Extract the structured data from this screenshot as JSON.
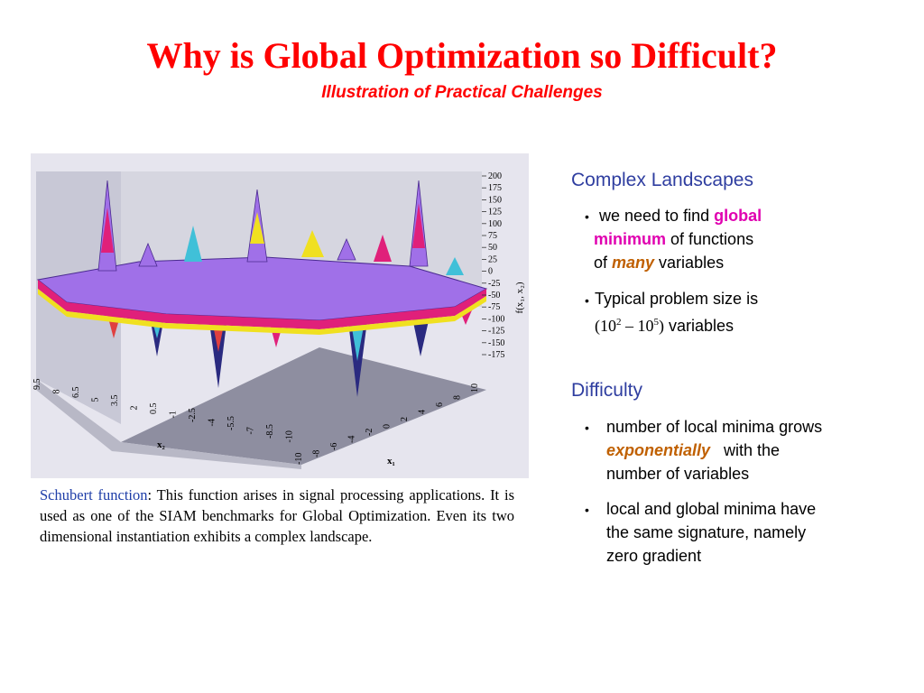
{
  "slide": {
    "title": "Why is Global Optimization so Difficult?",
    "subtitle": "Illustration of Practical Challenges"
  },
  "figure": {
    "z_axis_label": "f(x₁, x₂)",
    "z_ticks": [
      "200",
      "175",
      "150",
      "125",
      "100",
      "75",
      "50",
      "25",
      "0",
      "-25",
      "-50",
      "-75",
      "-100",
      "-125",
      "-150",
      "-175"
    ],
    "x2_label": "x₂",
    "x2_ticks": [
      "9.5",
      "8",
      "6.5",
      "5",
      "3.5",
      "2",
      "0.5",
      "-1",
      "-2.5",
      "-4",
      "-5.5",
      "-7",
      "-8.5",
      "-10"
    ],
    "x1_label": "x₁",
    "x1_ticks": [
      "-10",
      "-8",
      "-6",
      "-4",
      "-2",
      "0",
      "2",
      "4",
      "6",
      "8",
      "10"
    ],
    "colors": {
      "surface": "#a070e8",
      "magenta": "#e0207a",
      "yellow": "#f0e020",
      "cyan": "#40c0d8",
      "navy": "#2a2a80",
      "red": "#e04040",
      "floor": "#8e8ea0",
      "wall": "#d4d4de"
    }
  },
  "caption": {
    "lead": "Schubert function",
    "body": ": This function arises in signal processing applications. It is used as one of the SIAM benchmarks for Global Optimization.  Even its two dimensional instantiation exhibits a complex landscape."
  },
  "complex": {
    "heading": "Complex Landscapes",
    "b1_pre": "we need to find ",
    "b1_kw1": "global",
    "b1_kw2": "minimum",
    "b1_mid": " of  functions",
    "b1_of": "of ",
    "b1_kw3": "many",
    "b1_post": " variables",
    "b2_line1": "Typical problem size is",
    "b2_math_open": "(10",
    "b2_exp1": "2",
    "b2_math_mid": " – 10",
    "b2_exp2": "5",
    "b2_math_close": ")",
    "b2_post": " variables"
  },
  "difficulty": {
    "heading": "Difficulty",
    "b1_line1": "number of local minima  grows",
    "b1_kw": "exponentially",
    "b1_rest": "   with the",
    "b1_line3": "number of variables",
    "b2_line1": "local and global minima have",
    "b2_line2": "the same signature, namely",
    "b2_line3": "zero gradient"
  },
  "bullet_glyph": "•"
}
